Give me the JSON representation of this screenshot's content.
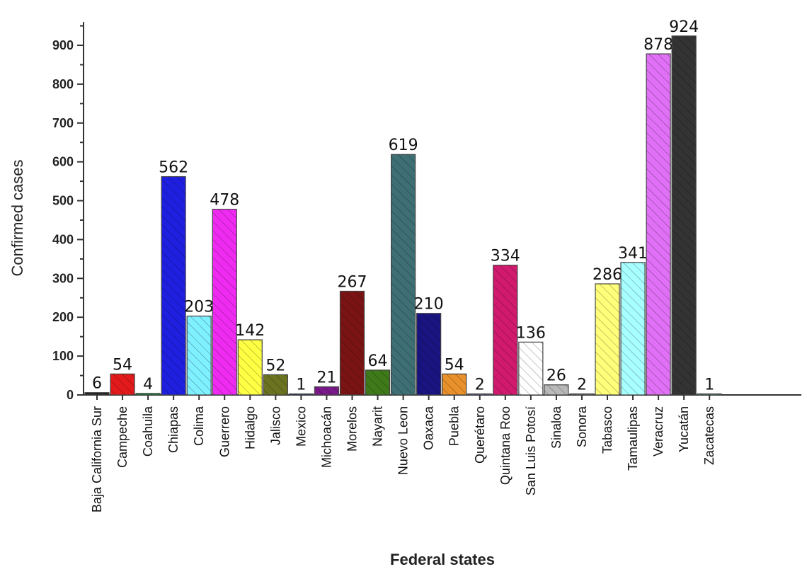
{
  "chart_data": {
    "type": "bar",
    "xlabel": "Federal states",
    "ylabel": "Confirmed cases",
    "ylim": [
      0,
      960
    ],
    "yticks": [
      0,
      100,
      200,
      300,
      400,
      500,
      600,
      700,
      800,
      900
    ],
    "grid": false,
    "hatch": true,
    "categories": [
      "Baja California Sur",
      "Campeche",
      "Coahuila",
      "Chiapas",
      "Colima",
      "Guerrero",
      "Hidalgo",
      "Jalisco",
      "Mexico",
      "Michoacán",
      "Morelos",
      "Nayarit",
      "Nuevo Leon",
      "Oaxaca",
      "Puebla",
      "Querétaro",
      "Quintana Roo",
      "San Luis Potosí",
      "Sinaloa",
      "Sonora",
      "Tabasco",
      "Tamaulipas",
      "Veracruz",
      "Yucatán",
      "Zacatecas"
    ],
    "values": [
      6,
      54,
      4,
      562,
      203,
      478,
      142,
      52,
      1,
      21,
      267,
      64,
      619,
      210,
      54,
      2,
      334,
      136,
      26,
      2,
      286,
      341,
      878,
      924,
      1
    ],
    "colors": [
      "#222222",
      "#e31a1c",
      "#1a9641",
      "#1f1fe0",
      "#7ff0ff",
      "#ef2bf2",
      "#ffff44",
      "#6b7320",
      "#1d3b8a",
      "#7a1a8a",
      "#7a1414",
      "#3f7a1a",
      "#3d6f74",
      "#1a1480",
      "#e8902a",
      "#7d4fbf",
      "#d11a6e",
      "#ffffff",
      "#b8b8b8",
      "#888888",
      "#ffff7a",
      "#a8ffff",
      "#e070f5",
      "#333333",
      "#4a9a9a"
    ]
  }
}
